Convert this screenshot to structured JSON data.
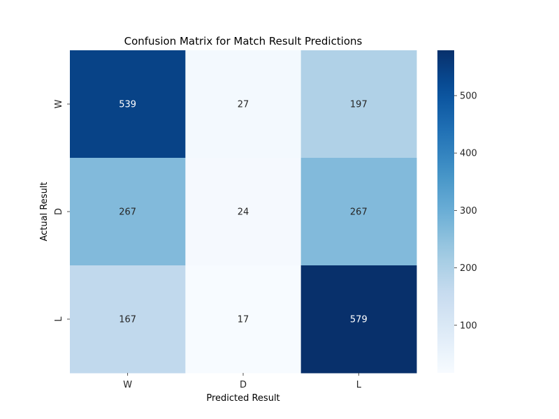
{
  "chart_data": {
    "type": "heatmap",
    "title": "Confusion Matrix for Match Result Predictions",
    "xlabel": "Predicted Result",
    "ylabel": "Actual Result",
    "x_categories": [
      "W",
      "D",
      "L"
    ],
    "y_categories": [
      "W",
      "D",
      "L"
    ],
    "values": [
      [
        539,
        27,
        197
      ],
      [
        267,
        24,
        267
      ],
      [
        167,
        17,
        579
      ]
    ],
    "colormap": "Blues",
    "colorbar": {
      "min": 17,
      "max": 579,
      "ticks": [
        100,
        200,
        300,
        400,
        500
      ]
    },
    "grid": false
  }
}
